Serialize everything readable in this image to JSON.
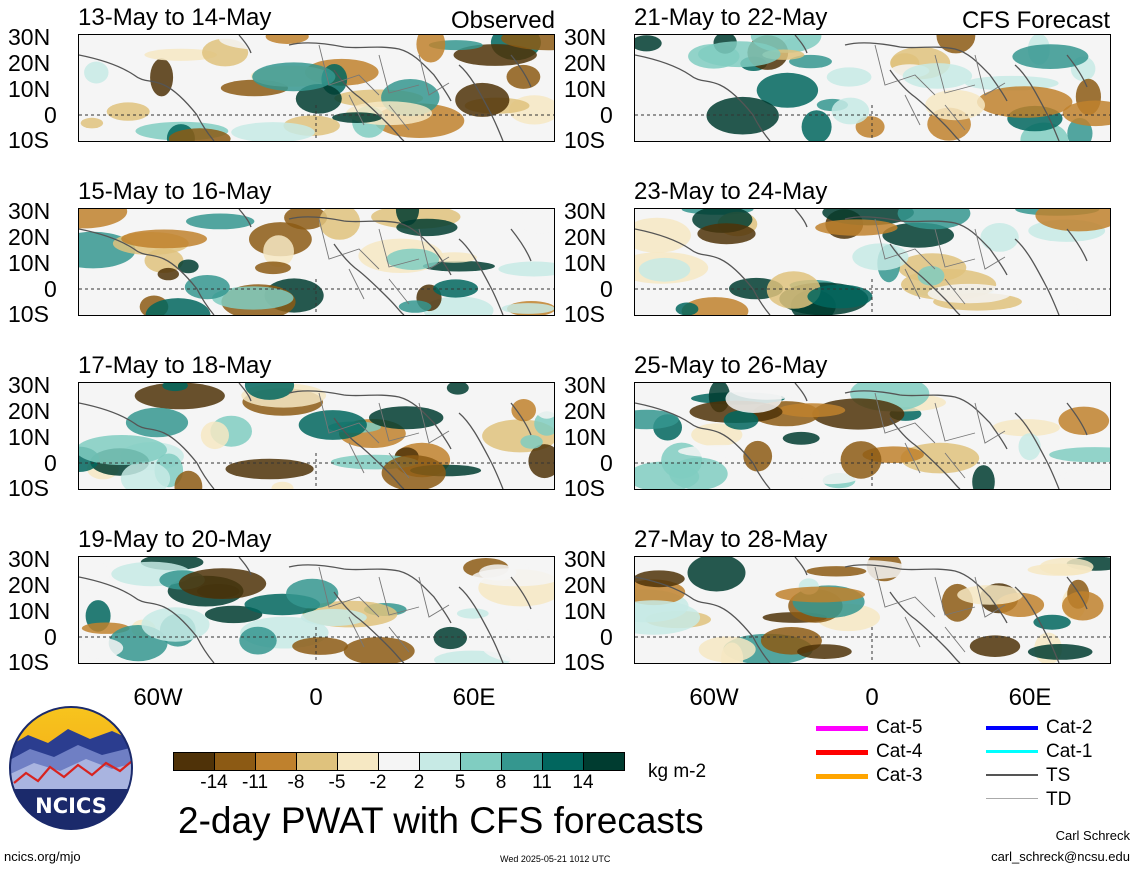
{
  "observed_label": "Observed",
  "forecast_label": "CFS Forecast",
  "panels_left": [
    {
      "title": "13-May to 14-May"
    },
    {
      "title": "15-May to 16-May"
    },
    {
      "title": "17-May to 18-May"
    },
    {
      "title": "19-May to 20-May"
    }
  ],
  "panels_right": [
    {
      "title": "21-May to 22-May"
    },
    {
      "title": "23-May to 24-May"
    },
    {
      "title": "25-May to 26-May"
    },
    {
      "title": "27-May to 28-May"
    }
  ],
  "lat_labels": [
    "30N",
    "20N",
    "10N",
    "0",
    "10S"
  ],
  "lon_labels": [
    "60W",
    "0",
    "60E"
  ],
  "colorbar": {
    "ticks": [
      "-14",
      "-11",
      "-8",
      "-5",
      "-2",
      "2",
      "5",
      "8",
      "11",
      "14"
    ],
    "colors": [
      "#4f3208",
      "#8c5a14",
      "#bf812d",
      "#dfc27d",
      "#f6e8c3",
      "#f5f5f5",
      "#c7eae5",
      "#80cdc1",
      "#35978f",
      "#01665e",
      "#003c30"
    ],
    "unit": "kg m-2"
  },
  "main_title": "2-day PWAT with CFS forecasts",
  "logo_text": "NCICS",
  "url": "ncics.org/mjo",
  "timestamp": "Wed 2025-05-21 1012 UTC",
  "author": "Carl Schreck",
  "email": "carl_schreck@ncsu.edu",
  "legend": [
    {
      "label": "Cat-5",
      "color": "#ff00ff"
    },
    {
      "label": "Cat-4",
      "color": "#ff0000"
    },
    {
      "label": "Cat-3",
      "color": "#ffa500"
    },
    {
      "label": "Cat-2",
      "color": "#0000ff"
    },
    {
      "label": "Cat-1",
      "color": "#00ffff"
    },
    {
      "label": "TS",
      "color": "#555555"
    },
    {
      "label": "TD",
      "color": "#aaaaaa"
    }
  ]
}
